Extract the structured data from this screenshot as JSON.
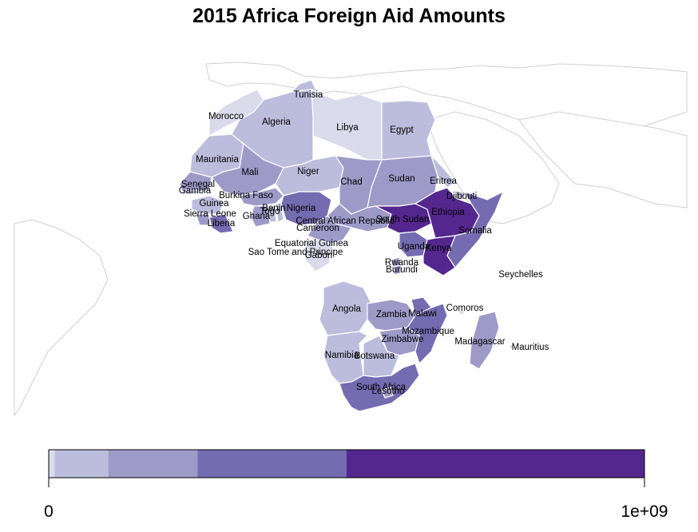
{
  "title": "2015 Africa Foreign Aid Amounts",
  "legend": {
    "min_label": "0",
    "max_label": "1e+09",
    "range": [
      0,
      1000000000
    ],
    "bin_colors": [
      "#dadaeb",
      "#bcbddc",
      "#9e9ac8",
      "#756bb1",
      "#54278f"
    ],
    "bin_breaks": [
      0,
      100000000,
      250000000,
      500000000,
      1000000000
    ]
  },
  "colors": {
    "border": "#ffffff",
    "background_land_stroke": "#cfcfcf",
    "ocean": "#ffffff",
    "low": "#dadaeb",
    "lowmid": "#bcbddc",
    "mid": "#9e9ac8",
    "high": "#756bb1",
    "highest": "#54278f",
    "no_data": "#ffffff"
  },
  "countries": [
    {
      "name": "Tunisia",
      "bin": 1
    },
    {
      "name": "Morocco",
      "bin": 0
    },
    {
      "name": "Algeria",
      "bin": 1
    },
    {
      "name": "Libya",
      "bin": 0
    },
    {
      "name": "Egypt",
      "bin": 1
    },
    {
      "name": "Mauritania",
      "bin": 1
    },
    {
      "name": "Mali",
      "bin": 2
    },
    {
      "name": "Niger",
      "bin": 1
    },
    {
      "name": "Chad",
      "bin": 2
    },
    {
      "name": "Sudan",
      "bin": 2
    },
    {
      "name": "Eritrea",
      "bin": 1
    },
    {
      "name": "Djibouti",
      "bin": 1
    },
    {
      "name": "Senegal",
      "bin": 2
    },
    {
      "name": "Gambia",
      "bin": 1
    },
    {
      "name": "Guinea",
      "bin": 1
    },
    {
      "name": "Burkina Faso",
      "bin": 2
    },
    {
      "name": "Benin",
      "bin": 1
    },
    {
      "name": "Togo",
      "bin": 1
    },
    {
      "name": "Ghana",
      "bin": 2
    },
    {
      "name": "Nigeria",
      "bin": 3
    },
    {
      "name": "Sierra Leone",
      "bin": 2
    },
    {
      "name": "Liberia",
      "bin": 3
    },
    {
      "name": "Central African Republic",
      "bin": 2
    },
    {
      "name": "South Sudan",
      "bin": 4
    },
    {
      "name": "Ethiopia",
      "bin": 4
    },
    {
      "name": "Somalia",
      "bin": 3
    },
    {
      "name": "Cameroon",
      "bin": 2
    },
    {
      "name": "Equatorial Guinea",
      "bin": 0
    },
    {
      "name": "Sao Tome and Principe",
      "bin": 0
    },
    {
      "name": "Gabon",
      "bin": 0
    },
    {
      "name": "Uganda",
      "bin": 3
    },
    {
      "name": "Kenya",
      "bin": 4
    },
    {
      "name": "Rwanda",
      "bin": 2
    },
    {
      "name": "Burundi",
      "bin": 2
    },
    {
      "name": "Seychelles",
      "bin": 0
    },
    {
      "name": "Angola",
      "bin": 1
    },
    {
      "name": "Zambia",
      "bin": 2
    },
    {
      "name": "Malawi",
      "bin": 3
    },
    {
      "name": "Comoros",
      "bin": 0
    },
    {
      "name": "Mozambique",
      "bin": 3
    },
    {
      "name": "Zimbabwe",
      "bin": 2
    },
    {
      "name": "Madagascar",
      "bin": 2
    },
    {
      "name": "Mauritius",
      "bin": 0
    },
    {
      "name": "Namibia",
      "bin": 1
    },
    {
      "name": "Botswana",
      "bin": 1
    },
    {
      "name": "South Africa",
      "bin": 3
    },
    {
      "name": "Lesotho",
      "bin": 2
    }
  ]
}
